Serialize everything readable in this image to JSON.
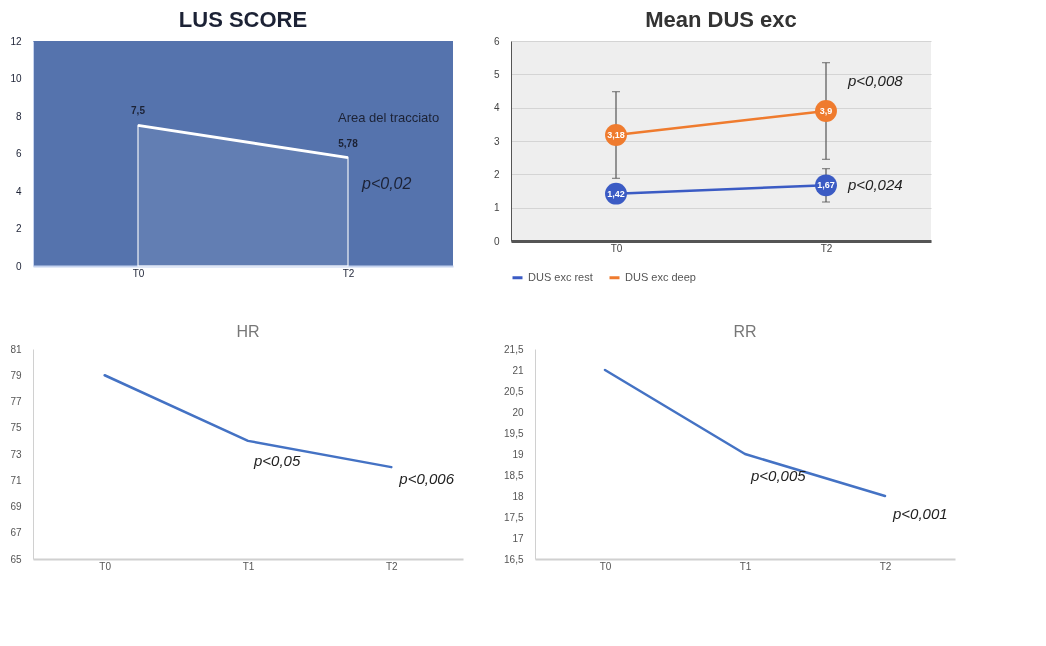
{
  "chart_data": [
    {
      "type": "area",
      "title": "LUS SCORE",
      "categories": [
        "T0",
        "T2"
      ],
      "values": [
        7.5,
        5.78
      ],
      "value_labels": [
        "7,5",
        "5,78"
      ],
      "color": "#ffffff",
      "ylim": [
        0,
        12
      ],
      "yticks": [
        0,
        2,
        4,
        6,
        8,
        10,
        12
      ],
      "annotations": [
        {
          "text": "Area del tracciato",
          "x": "T2",
          "y": 5.78
        },
        {
          "text": "p<0,02",
          "x": "T2",
          "y": 5.78
        }
      ]
    },
    {
      "type": "line",
      "title": "Mean DUS exc",
      "categories": [
        "T0",
        "T2"
      ],
      "series": [
        {
          "name": "DUS exc rest",
          "color": "#3b5bc4",
          "values": [
            1.42,
            1.67
          ],
          "value_labels": [
            "1,42",
            "1,67"
          ],
          "errors": [
            null,
            0.5
          ]
        },
        {
          "name": "DUS exc deep",
          "color": "#ef7b2e",
          "values": [
            3.18,
            3.9
          ],
          "value_labels": [
            "3,18",
            "3,9"
          ],
          "errors": [
            1.3,
            1.45
          ]
        }
      ],
      "ylim": [
        0,
        6
      ],
      "yticks": [
        0,
        1,
        2,
        3,
        4,
        5,
        6
      ],
      "grid": "y",
      "legend": "bottom",
      "marker": "circle",
      "annotations": [
        {
          "text": "p<0,008",
          "x": "T2",
          "y": 3.9
        },
        {
          "text": "p<0,024",
          "x": "T2",
          "y": 1.67
        }
      ]
    },
    {
      "type": "line",
      "title": "HR",
      "categories": [
        "T0",
        "T1",
        "T2"
      ],
      "values": [
        79,
        74,
        72
      ],
      "color": "#4472c4",
      "ylim": [
        65,
        81
      ],
      "yticks": [
        65,
        67,
        69,
        71,
        73,
        75,
        77,
        79,
        81
      ],
      "annotations": [
        {
          "text": "p<0,05",
          "x": "T1",
          "y": 74
        },
        {
          "text": "p<0,006",
          "x": "T2",
          "y": 72
        }
      ]
    },
    {
      "type": "line",
      "title": "RR",
      "categories": [
        "T0",
        "T1",
        "T2"
      ],
      "values": [
        21,
        19,
        18
      ],
      "color": "#4472c4",
      "ylim": [
        16.5,
        21.5
      ],
      "yticks": [
        {
          "value": 16.5,
          "label": "16,5"
        },
        17,
        {
          "value": 17.5,
          "label": "17,5"
        },
        18,
        {
          "value": 18.5,
          "label": "18,5"
        },
        19,
        {
          "value": 19.5,
          "label": "19,5"
        },
        20,
        {
          "value": 20.5,
          "label": "20,5"
        },
        21,
        {
          "value": 21.5,
          "label": "21,5"
        }
      ],
      "annotations": [
        {
          "text": "p<0,005",
          "x": "T1",
          "y": 19
        },
        {
          "text": "p<0,001",
          "x": "T2",
          "y": 18
        }
      ]
    }
  ]
}
